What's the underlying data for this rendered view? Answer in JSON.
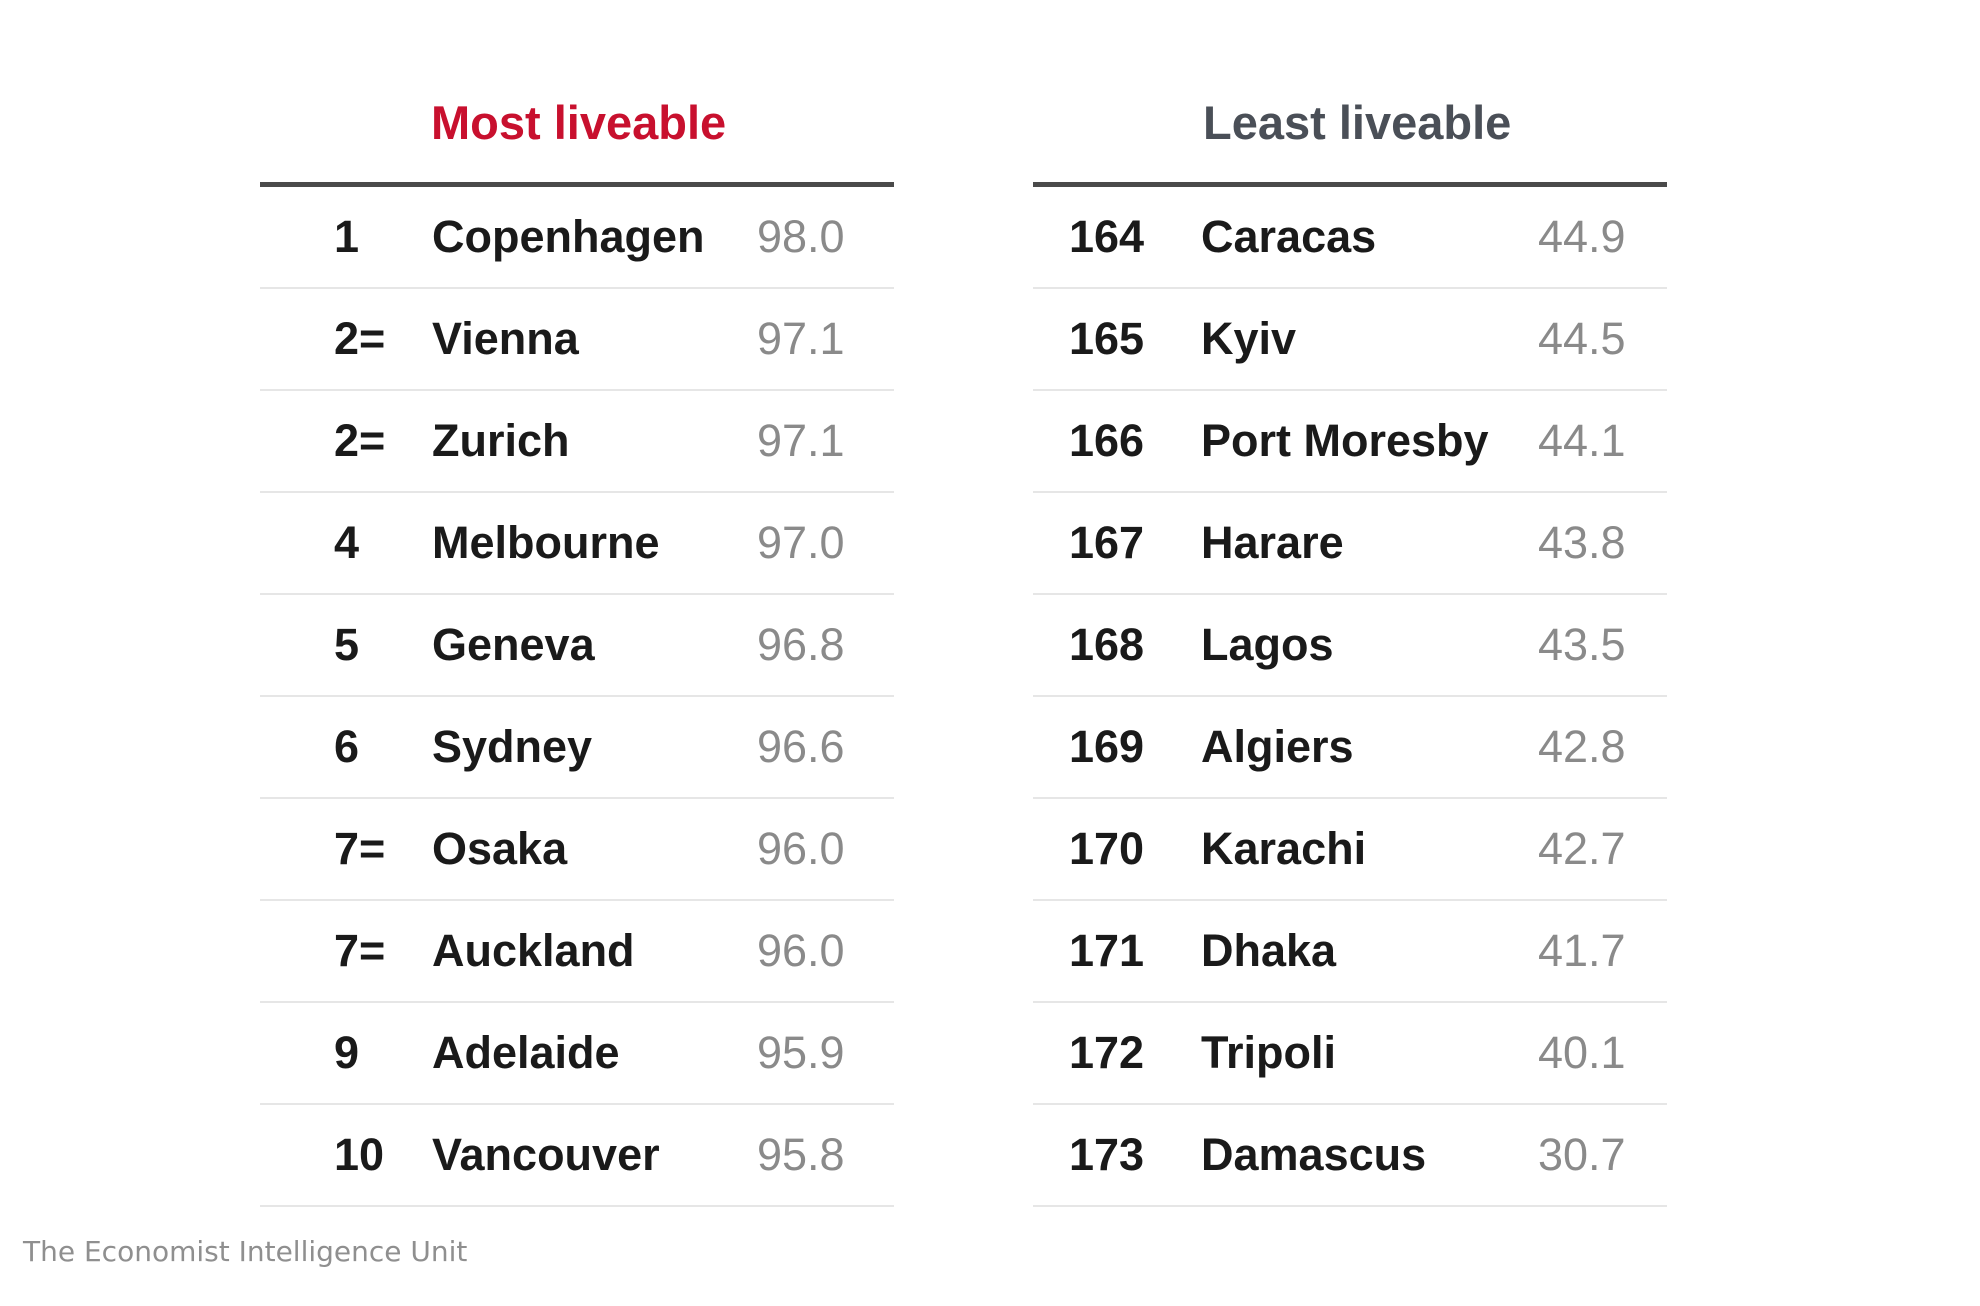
{
  "colors": {
    "most_title": "#c8102e",
    "least_title": "#4a4f57",
    "rule": "#4a4a4a",
    "row_divider": "#e6e6e6",
    "score": "#8a8a8a"
  },
  "source": "The Economist Intelligence Unit",
  "chart_data": [
    {
      "type": "table",
      "title": "Most liveable",
      "columns": [
        "rank",
        "city",
        "score"
      ],
      "rows": [
        {
          "rank": "1",
          "city": "Copenhagen",
          "score": "98.0"
        },
        {
          "rank": "2=",
          "city": "Vienna",
          "score": "97.1"
        },
        {
          "rank": "2=",
          "city": "Zurich",
          "score": "97.1"
        },
        {
          "rank": "4",
          "city": "Melbourne",
          "score": "97.0"
        },
        {
          "rank": "5",
          "city": "Geneva",
          "score": "96.8"
        },
        {
          "rank": "6",
          "city": "Sydney",
          "score": "96.6"
        },
        {
          "rank": "7=",
          "city": "Osaka",
          "score": "96.0"
        },
        {
          "rank": "7=",
          "city": "Auckland",
          "score": "96.0"
        },
        {
          "rank": "9",
          "city": "Adelaide",
          "score": "95.9"
        },
        {
          "rank": "10",
          "city": "Vancouver",
          "score": "95.8"
        }
      ]
    },
    {
      "type": "table",
      "title": "Least liveable",
      "columns": [
        "rank",
        "city",
        "score"
      ],
      "rows": [
        {
          "rank": "164",
          "city": "Caracas",
          "score": "44.9"
        },
        {
          "rank": "165",
          "city": "Kyiv",
          "score": "44.5"
        },
        {
          "rank": "166",
          "city": "Port Moresby",
          "score": "44.1"
        },
        {
          "rank": "167",
          "city": "Harare",
          "score": "43.8"
        },
        {
          "rank": "168",
          "city": "Lagos",
          "score": "43.5"
        },
        {
          "rank": "169",
          "city": "Algiers",
          "score": "42.8"
        },
        {
          "rank": "170",
          "city": "Karachi",
          "score": "42.7"
        },
        {
          "rank": "171",
          "city": "Dhaka",
          "score": "41.7"
        },
        {
          "rank": "172",
          "city": "Tripoli",
          "score": "40.1"
        },
        {
          "rank": "173",
          "city": "Damascus",
          "score": "30.7"
        }
      ]
    }
  ]
}
